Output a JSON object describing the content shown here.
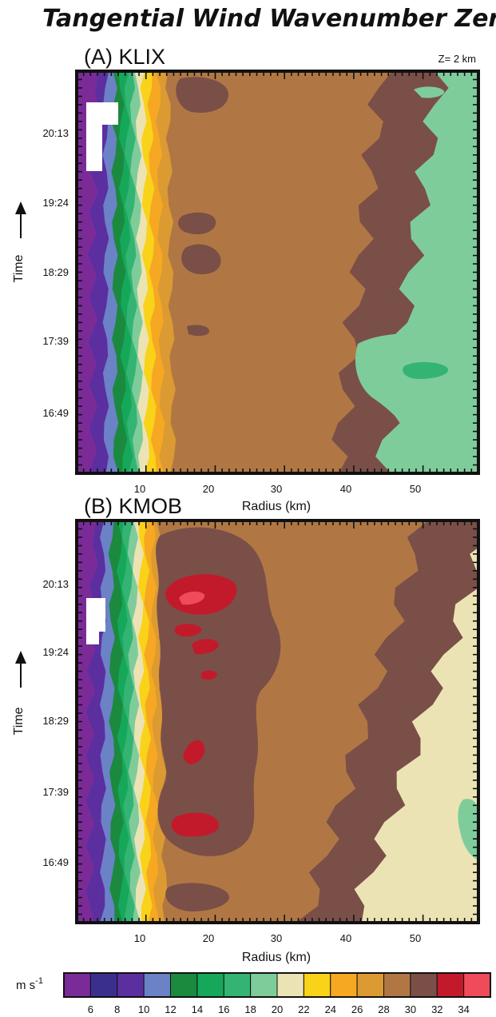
{
  "figure": {
    "title": "Tangential Wind Wavenumber Zero",
    "level_label": "Z= 2 km",
    "colorbar": {
      "unit_label": "m s",
      "unit_exponent": "-1",
      "tick_labels": [
        "6",
        "8",
        "10",
        "12",
        "14",
        "16",
        "18",
        "20",
        "22",
        "24",
        "26",
        "28",
        "30",
        "32",
        "34"
      ],
      "bins": [
        {
          "range": [
            4,
            6
          ],
          "color": "#7b2b97"
        },
        {
          "range": [
            6,
            8
          ],
          "color": "#3b2f8e"
        },
        {
          "range": [
            8,
            10
          ],
          "color": "#5b2fa0"
        },
        {
          "range": [
            10,
            12
          ],
          "color": "#6b82c6"
        },
        {
          "range": [
            12,
            14
          ],
          "color": "#1b8a3f"
        },
        {
          "range": [
            14,
            16
          ],
          "color": "#16a85a"
        },
        {
          "range": [
            16,
            18
          ],
          "color": "#34b473"
        },
        {
          "range": [
            18,
            20
          ],
          "color": "#7fcc9b"
        },
        {
          "range": [
            20,
            22
          ],
          "color": "#ece3b4"
        },
        {
          "range": [
            22,
            24
          ],
          "color": "#f9d21a"
        },
        {
          "range": [
            24,
            26
          ],
          "color": "#f6a822"
        },
        {
          "range": [
            26,
            28
          ],
          "color": "#dc9a32"
        },
        {
          "range": [
            28,
            30
          ],
          "color": "#b07744"
        },
        {
          "range": [
            30,
            32
          ],
          "color": "#7a4f48"
        },
        {
          "range": [
            32,
            34
          ],
          "color": "#c21a2a"
        },
        {
          "range": [
            34,
            36
          ],
          "color": "#ef4b5b"
        }
      ]
    }
  },
  "chart_data": [
    {
      "type": "heatmap",
      "panel_label": "(A) KLIX",
      "xlabel": "Radius (km)",
      "ylabel": "Time",
      "xlim": [
        0,
        58
      ],
      "x_ticks": [
        10,
        20,
        30,
        40,
        50
      ],
      "y_ticks": [
        "16:49",
        "17:39",
        "18:29",
        "19:24",
        "20:13"
      ],
      "value_unit": "m s-1",
      "isotach_radii_km": [
        {
          "value": 8,
          "bottom": 4.2,
          "top": 4.2
        },
        {
          "value": 10,
          "bottom": 5.6,
          "top": 5.4
        },
        {
          "value": 12,
          "bottom": 6.9,
          "top": 6.4
        },
        {
          "value": 14,
          "bottom": 7.7,
          "top": 7.2
        },
        {
          "value": 16,
          "bottom": 8.5,
          "top": 8.0
        },
        {
          "value": 18,
          "bottom": 9.3,
          "top": 8.8
        },
        {
          "value": 20,
          "bottom": 10.2,
          "top": 9.6
        },
        {
          "value": 22,
          "bottom": 11.2,
          "top": 10.6
        },
        {
          "value": 24,
          "bottom": 12.4,
          "top": 11.8
        },
        {
          "value": 26,
          "bottom": 14.0,
          "top": 13.2
        },
        {
          "value": 28,
          "bottom": 37.5,
          "top": 44.0
        },
        {
          "value": 30,
          "bottom": 44.0,
          "top": 52.5
        }
      ],
      "local_maxima": [
        {
          "time": "20:28",
          "radius_km": 17.5,
          "value_range": [
            30,
            32
          ]
        },
        {
          "time": "18:40",
          "radius_km": 18,
          "value_range": [
            30,
            32
          ]
        },
        {
          "time": "19:05",
          "radius_km": 19,
          "value_range": [
            30,
            32
          ]
        }
      ]
    },
    {
      "type": "heatmap",
      "panel_label": "(B) KMOB",
      "xlabel": "Radius (km)",
      "ylabel": "Time",
      "xlim": [
        0,
        58
      ],
      "x_ticks": [
        10,
        20,
        30,
        40,
        50
      ],
      "y_ticks": [
        "16:49",
        "17:39",
        "18:29",
        "19:24",
        "20:13"
      ],
      "value_unit": "m s-1",
      "isotach_radii_km": [
        {
          "value": 8,
          "bottom": 3.8,
          "top": 3.8
        },
        {
          "value": 10,
          "bottom": 5.2,
          "top": 5.0
        },
        {
          "value": 12,
          "bottom": 6.4,
          "top": 6.2
        },
        {
          "value": 14,
          "bottom": 7.2,
          "top": 6.9
        },
        {
          "value": 16,
          "bottom": 8.0,
          "top": 7.7
        },
        {
          "value": 18,
          "bottom": 8.8,
          "top": 8.4
        },
        {
          "value": 20,
          "bottom": 9.6,
          "top": 9.2
        },
        {
          "value": 22,
          "bottom": 10.5,
          "top": 10.0
        },
        {
          "value": 24,
          "bottom": 11.5,
          "top": 11.0
        },
        {
          "value": 26,
          "bottom": 12.8,
          "top": 12.0
        },
        {
          "value": 28,
          "bottom": 33.0,
          "top": 50.0
        },
        {
          "value": 30,
          "bottom": 40.0,
          "top": 60.0
        }
      ],
      "local_maxima": [
        {
          "time": "20:05",
          "radius_km": 20,
          "value_range": [
            34,
            36
          ]
        },
        {
          "time": "19:34",
          "radius_km": 19,
          "value_range": [
            32,
            34
          ]
        },
        {
          "time": "18:04",
          "radius_km": 17,
          "value_range": [
            32,
            34
          ]
        },
        {
          "time": "17:14",
          "radius_km": 18,
          "value_range": [
            32,
            34
          ]
        }
      ]
    }
  ]
}
